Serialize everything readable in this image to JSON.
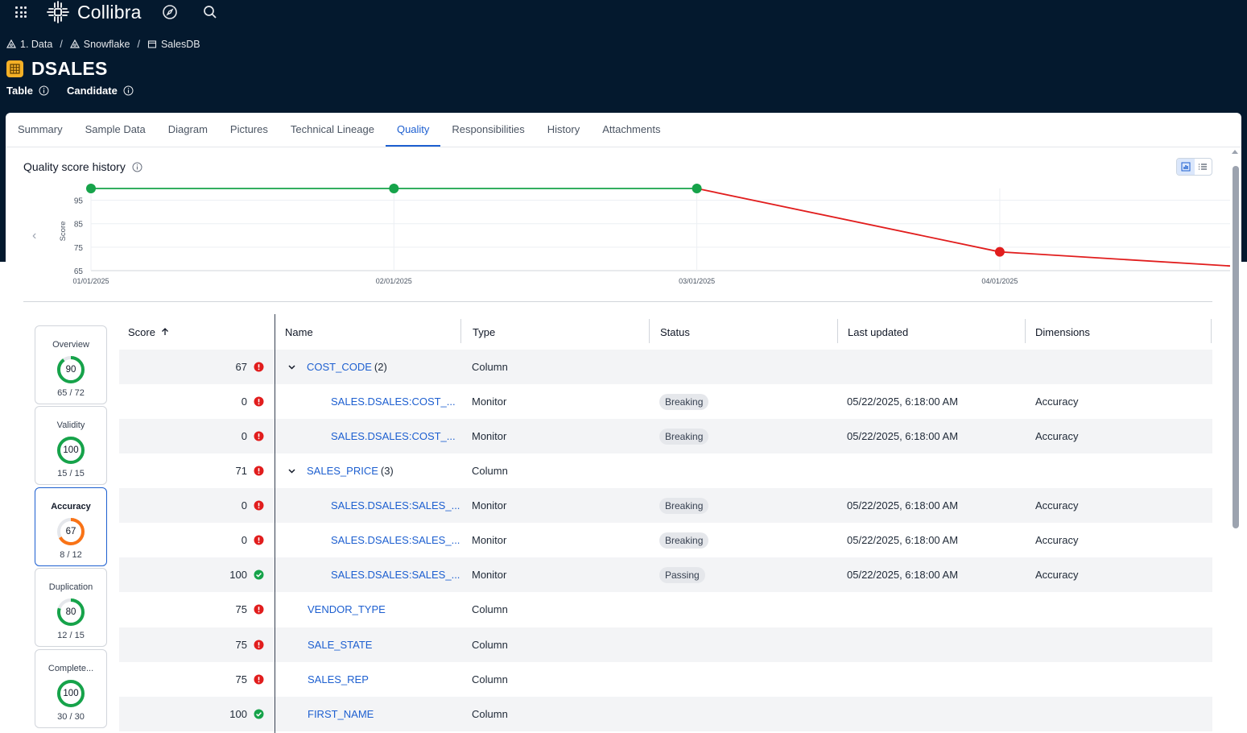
{
  "app": {
    "name": "Collibra"
  },
  "breadcrumb": [
    {
      "label": "1. Data",
      "icon": "community-icon"
    },
    {
      "label": "Snowflake",
      "icon": "domain-icon"
    },
    {
      "label": "SalesDB",
      "icon": "database-icon"
    }
  ],
  "asset": {
    "name": "DSALES",
    "type": "Table",
    "status": "Candidate"
  },
  "tabs": [
    "Summary",
    "Sample Data",
    "Diagram",
    "Pictures",
    "Technical Lineage",
    "Quality",
    "Responsibilities",
    "History",
    "Attachments"
  ],
  "active_tab": "Quality",
  "quality_history": {
    "title": "Quality score history",
    "chart_data": {
      "type": "line",
      "ylabel": "Score",
      "x": [
        "01/01/2025",
        "02/01/2025",
        "03/01/2025",
        "04/01/2025"
      ],
      "yticks": [
        65,
        75,
        85,
        95
      ],
      "ylim": [
        65,
        100
      ],
      "series": [
        {
          "values": [
            100,
            100,
            100,
            73
          ],
          "trailing_value": 67
        }
      ],
      "colors": {
        "good": "#16a34a",
        "bad": "#e11d1d"
      }
    }
  },
  "dimensions": [
    {
      "name": "Overview",
      "score": "90",
      "fraction": "65 / 72",
      "pct": 0.9,
      "color": "#16a34a"
    },
    {
      "name": "Validity",
      "score": "100",
      "fraction": "15 / 15",
      "pct": 1.0,
      "color": "#16a34a"
    },
    {
      "name": "Accuracy",
      "score": "67",
      "fraction": "8 / 12",
      "pct": 0.67,
      "color": "#f97316",
      "selected": true
    },
    {
      "name": "Duplication",
      "score": "80",
      "fraction": "12 / 15",
      "pct": 0.8,
      "color": "#16a34a"
    },
    {
      "name": "Complete...",
      "score": "100",
      "fraction": "30 / 30",
      "pct": 1.0,
      "color": "#16a34a"
    }
  ],
  "table": {
    "headers": {
      "score": "Score",
      "name": "Name",
      "type": "Type",
      "status": "Status",
      "updated": "Last updated",
      "dimensions": "Dimensions"
    },
    "rows": [
      {
        "score": "67",
        "state": "error",
        "expand": true,
        "name": "COST_CODE",
        "count": "(2)",
        "type": "Column",
        "status": "",
        "updated": "",
        "dimension": ""
      },
      {
        "score": "0",
        "state": "error",
        "indent": true,
        "name": "SALES.DSALES:COST_...",
        "type": "Monitor",
        "status": "Breaking",
        "updated": "05/22/2025, 6:18:00 AM",
        "dimension": "Accuracy"
      },
      {
        "score": "0",
        "state": "error",
        "indent": true,
        "name": "SALES.DSALES:COST_...",
        "type": "Monitor",
        "status": "Breaking",
        "updated": "05/22/2025, 6:18:00 AM",
        "dimension": "Accuracy"
      },
      {
        "score": "71",
        "state": "error",
        "expand": true,
        "name": "SALES_PRICE",
        "count": "(3)",
        "type": "Column",
        "status": "",
        "updated": "",
        "dimension": ""
      },
      {
        "score": "0",
        "state": "error",
        "indent": true,
        "name": "SALES.DSALES:SALES_...",
        "type": "Monitor",
        "status": "Breaking",
        "updated": "05/22/2025, 6:18:00 AM",
        "dimension": "Accuracy"
      },
      {
        "score": "0",
        "state": "error",
        "indent": true,
        "name": "SALES.DSALES:SALES_...",
        "type": "Monitor",
        "status": "Breaking",
        "updated": "05/22/2025, 6:18:00 AM",
        "dimension": "Accuracy"
      },
      {
        "score": "100",
        "state": "ok",
        "indent": true,
        "name": "SALES.DSALES:SALES_...",
        "type": "Monitor",
        "status": "Passing",
        "updated": "05/22/2025, 6:18:00 AM",
        "dimension": "Accuracy"
      },
      {
        "score": "75",
        "state": "error",
        "name": "VENDOR_TYPE",
        "type": "Column",
        "status": "",
        "updated": "",
        "dimension": ""
      },
      {
        "score": "75",
        "state": "error",
        "name": "SALE_STATE",
        "type": "Column",
        "status": "",
        "updated": "",
        "dimension": ""
      },
      {
        "score": "75",
        "state": "error",
        "name": "SALES_REP",
        "type": "Column",
        "status": "",
        "updated": "",
        "dimension": ""
      },
      {
        "score": "100",
        "state": "ok",
        "name": "FIRST_NAME",
        "type": "Column",
        "status": "",
        "updated": "",
        "dimension": ""
      }
    ]
  }
}
